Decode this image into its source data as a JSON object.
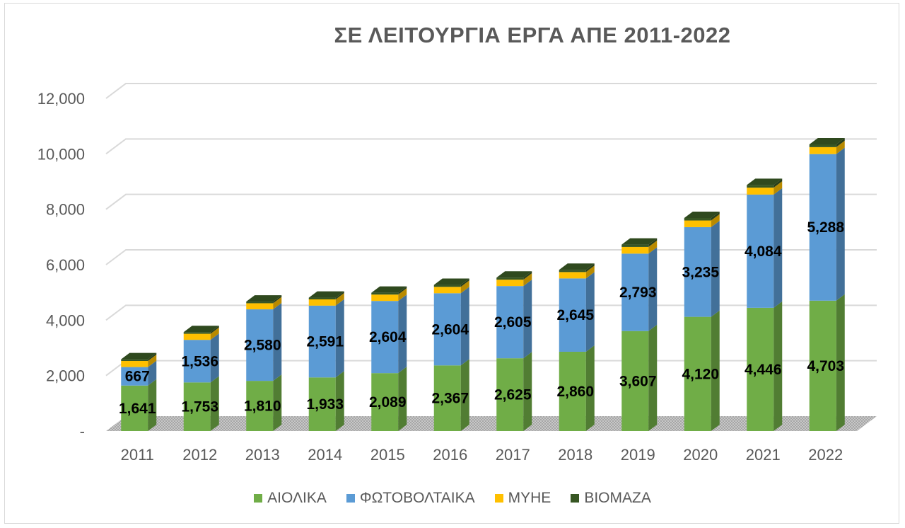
{
  "chart_data": {
    "type": "bar",
    "stacked": true,
    "title": "ΣΕ ΛΕΙΤΟΥΡΓΙΑ ΕΡΓΑ ΑΠΕ 2011-2022",
    "categories": [
      "2011",
      "2012",
      "2013",
      "2014",
      "2015",
      "2016",
      "2017",
      "2018",
      "2019",
      "2020",
      "2021",
      "2022"
    ],
    "series": [
      {
        "name": "ΑΙΟΛΙΚΑ",
        "color": "#70ad47",
        "labeled": true,
        "values": [
          1641,
          1753,
          1810,
          1933,
          2089,
          2367,
          2625,
          2860,
          3607,
          4120,
          4446,
          4703
        ],
        "labels": [
          "1,641",
          "1,753",
          "1,810",
          "1,933",
          "2,089",
          "2,367",
          "2,625",
          "2,860",
          "3,607",
          "4,120",
          "4,446",
          "4,703"
        ]
      },
      {
        "name": "ΦΩΤΟΒΟΛΤΑΙΚΑ",
        "color": "#5b9bd5",
        "labeled": true,
        "values": [
          667,
          1536,
          2580,
          2591,
          2604,
          2604,
          2605,
          2645,
          2793,
          3235,
          4084,
          5288
        ],
        "labels": [
          "667",
          "1,536",
          "2,580",
          "2,591",
          "2,604",
          "2,604",
          "2,605",
          "2,645",
          "2,793",
          "3,235",
          "4,084",
          "5,288"
        ]
      },
      {
        "name": "ΜΥΗΕ",
        "color": "#ffc000",
        "labeled": false,
        "values": [
          220,
          220,
          220,
          225,
          230,
          230,
          230,
          230,
          240,
          240,
          250,
          250
        ]
      },
      {
        "name": "ΒΙΟΜΑΖΑ",
        "color": "#375623",
        "labeled": false,
        "values": [
          60,
          60,
          60,
          62,
          65,
          70,
          75,
          80,
          85,
          90,
          95,
          100
        ]
      }
    ],
    "ylim": [
      0,
      12000
    ],
    "yticks": [
      0,
      2000,
      4000,
      6000,
      8000,
      10000,
      12000
    ],
    "ytick_labels": [
      "-",
      "2,000",
      "4,000",
      "6,000",
      "8,000",
      "10,000",
      "12,000"
    ],
    "xlabel": "",
    "ylabel": "",
    "grid": true,
    "legend": "bottom"
  }
}
